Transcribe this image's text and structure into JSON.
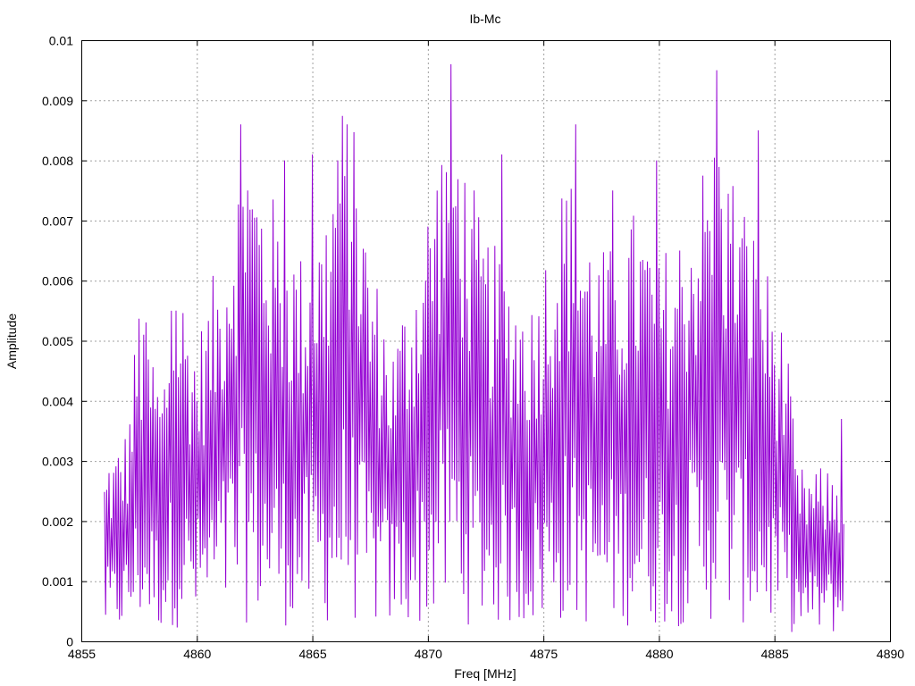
{
  "chart_data": {
    "type": "line",
    "title": "Ib-Mc",
    "xlabel": "Freq [MHz]",
    "ylabel": "Amplitude",
    "xlim": [
      4855,
      4890
    ],
    "ylim": [
      0,
      0.01
    ],
    "x_ticks": [
      "4855",
      "4860",
      "4865",
      "4870",
      "4875",
      "4880",
      "4885",
      "4890"
    ],
    "y_ticks": [
      "0",
      "0.001",
      "0.002",
      "0.003",
      "0.004",
      "0.005",
      "0.006",
      "0.007",
      "0.008",
      "0.009",
      "0.01"
    ],
    "grid": true,
    "series": [
      {
        "color": "#9400d3",
        "x_range": [
          4856.0,
          4888.0
        ],
        "sample_step": 0.05,
        "envelope_shape": [
          [
            4856.0,
            0.002
          ],
          [
            4857.0,
            0.0025
          ],
          [
            4857.5,
            0.004
          ],
          [
            4858.5,
            0.003
          ],
          [
            4859.0,
            0.0045
          ],
          [
            4860.0,
            0.0035
          ],
          [
            4861.0,
            0.0045
          ],
          [
            4862.0,
            0.006
          ],
          [
            4863.5,
            0.005
          ],
          [
            4864.5,
            0.0045
          ],
          [
            4865.5,
            0.005
          ],
          [
            4866.5,
            0.0065
          ],
          [
            4867.5,
            0.0045
          ],
          [
            4868.5,
            0.0035
          ],
          [
            4869.5,
            0.0045
          ],
          [
            4871.0,
            0.0065
          ],
          [
            4872.0,
            0.005
          ],
          [
            4873.0,
            0.0045
          ],
          [
            4874.5,
            0.004
          ],
          [
            4876.0,
            0.0055
          ],
          [
            4877.5,
            0.0045
          ],
          [
            4879.0,
            0.005
          ],
          [
            4880.5,
            0.0045
          ],
          [
            4882.5,
            0.006
          ],
          [
            4884.5,
            0.0045
          ],
          [
            4885.5,
            0.0035
          ],
          [
            4886.0,
            0.002
          ],
          [
            4888.0,
            0.002
          ]
        ],
        "peaks": [
          [
            4856.2,
            0.0028
          ],
          [
            4857.7,
            0.0051
          ],
          [
            4858.9,
            0.0055
          ],
          [
            4861.0,
            0.0052
          ],
          [
            4861.9,
            0.0086
          ],
          [
            4862.2,
            0.0075
          ],
          [
            4863.8,
            0.008
          ],
          [
            4865.0,
            0.0081
          ],
          [
            4866.1,
            0.008
          ],
          [
            4866.5,
            0.0086
          ],
          [
            4866.9,
            0.0072
          ],
          [
            4871.0,
            0.0096
          ],
          [
            4872.0,
            0.0075
          ],
          [
            4873.2,
            0.0081
          ],
          [
            4876.4,
            0.0086
          ],
          [
            4878.0,
            0.0075
          ],
          [
            4879.9,
            0.008
          ],
          [
            4882.5,
            0.0095
          ],
          [
            4884.3,
            0.0085
          ],
          [
            4887.9,
            0.0037
          ]
        ]
      }
    ]
  }
}
